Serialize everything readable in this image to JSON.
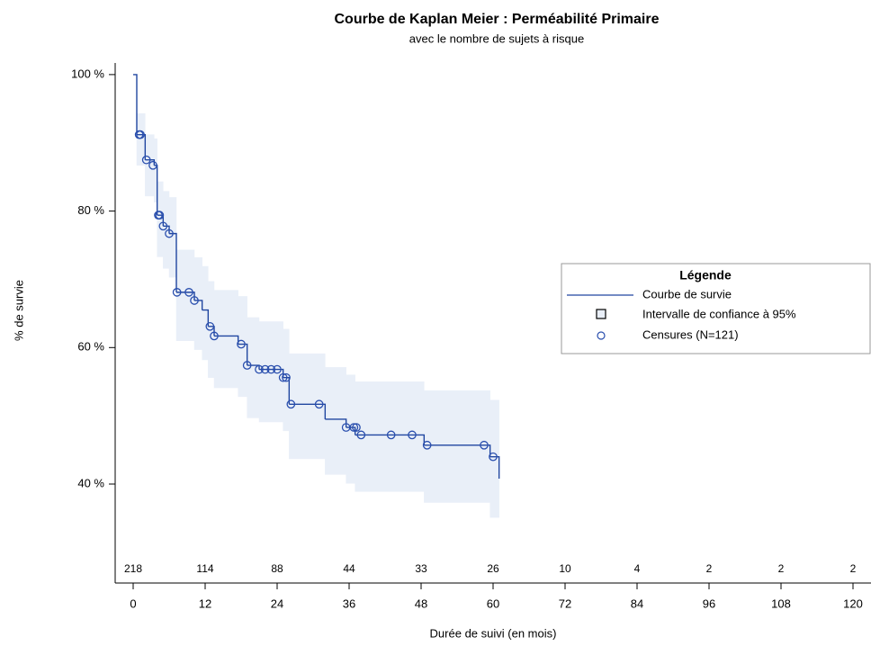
{
  "chart_data": {
    "type": "kaplan-meier",
    "title": "Courbe de Kaplan Meier : Perméabilité Primaire",
    "subtitle": "avec le nombre de sujets à risque",
    "xlabel": "Durée de suivi (en mois)",
    "ylabel": "% de survie",
    "xlim": [
      -3,
      123
    ],
    "ylim": [
      25.5,
      101.7
    ],
    "xticks": [
      0,
      12,
      24,
      36,
      48,
      60,
      72,
      84,
      96,
      108,
      120
    ],
    "yticks": [
      {
        "value": 40,
        "label": "40 %"
      },
      {
        "value": 60,
        "label": "60 %"
      },
      {
        "value": 80,
        "label": "80 %"
      },
      {
        "value": 100,
        "label": "100 %"
      }
    ],
    "grid": false,
    "legend": "right",
    "legend_title": "Légende",
    "at_risk": [
      218,
      114,
      88,
      44,
      33,
      26,
      10,
      4,
      2,
      2,
      2
    ],
    "series": [
      {
        "name": "Courbe de survie",
        "color": "#2046a0",
        "x": [
          0,
          0.6,
          2,
          3.5,
          4,
          5,
          6,
          7.2,
          10.2,
          11.5,
          12.5,
          13.5,
          17.5,
          19,
          21,
          25,
          26,
          32,
          35.5,
          37,
          48.5,
          59.5,
          61
        ],
        "values": [
          100,
          91.2,
          87.5,
          86.7,
          79.4,
          77.8,
          76.7,
          68.1,
          66.9,
          65.5,
          63.1,
          61.7,
          60.5,
          57.4,
          56.8,
          55.6,
          51.7,
          49.5,
          48.3,
          47.2,
          45.7,
          44.0,
          40.8
        ]
      },
      {
        "name": "Intervalle de confiance à 95%",
        "color": "#e9eff8",
        "lower": [
          null,
          86.7,
          82.2,
          81.3,
          73.3,
          71.6,
          70.3,
          61.0,
          59.7,
          58.2,
          55.6,
          54.1,
          52.8,
          49.7,
          49.1,
          47.8,
          43.7,
          41.4,
          40.1,
          38.9,
          37.3,
          35.1,
          null
        ],
        "upper": [
          null,
          94.3,
          91.2,
          90.6,
          84.3,
          82.9,
          82.0,
          74.3,
          73.2,
          71.9,
          69.7,
          68.4,
          67.5,
          64.4,
          63.8,
          62.7,
          59.1,
          57.1,
          56.0,
          55.0,
          53.7,
          52.3,
          null
        ]
      },
      {
        "name": "Censures (N=121)",
        "color": "#2a4fae",
        "x": [
          1,
          1.2,
          2.2,
          3.3,
          4.2,
          4.4,
          5,
          6,
          7.3,
          9.3,
          10.2,
          12.8,
          13.5,
          18,
          19,
          21,
          22,
          23,
          24,
          25,
          25.5,
          26.3,
          31,
          35.5,
          36.8,
          37.2,
          38,
          43,
          46.5,
          49,
          58.5,
          60
        ],
        "values": [
          91.2,
          91.2,
          87.5,
          86.7,
          79.4,
          79.4,
          77.8,
          76.7,
          68.1,
          68.1,
          66.9,
          63.1,
          61.7,
          60.5,
          57.4,
          56.8,
          56.8,
          56.8,
          56.8,
          55.6,
          55.6,
          51.7,
          51.7,
          48.3,
          48.3,
          48.3,
          47.2,
          47.2,
          47.2,
          45.7,
          45.7,
          44.0
        ]
      }
    ]
  }
}
